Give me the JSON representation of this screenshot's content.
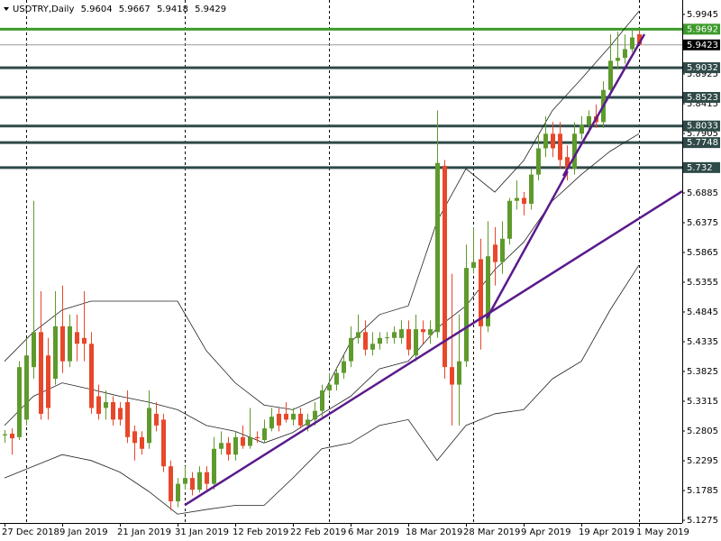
{
  "header": {
    "symbol": "USDTRY,Daily",
    "ohlc": [
      5.9604,
      5.9667,
      5.9418,
      5.9429
    ]
  },
  "chart_data": {
    "type": "candlestick",
    "categories": [
      "27 Dec 2018",
      null,
      null,
      null,
      null,
      null,
      null,
      null,
      "9 Jan 2019",
      null,
      null,
      null,
      null,
      null,
      null,
      null,
      "21 Jan 2019",
      null,
      null,
      null,
      null,
      null,
      null,
      null,
      "31 Jan 2019",
      null,
      null,
      null,
      null,
      null,
      null,
      null,
      "12 Feb 2019",
      null,
      null,
      null,
      null,
      null,
      null,
      null,
      "22 Feb 2019",
      null,
      null,
      null,
      null,
      null,
      null,
      null,
      "6 Mar 2019",
      null,
      null,
      null,
      null,
      null,
      null,
      null,
      "18 Mar 2019",
      null,
      null,
      null,
      null,
      null,
      null,
      null,
      "28 Mar 2019",
      null,
      null,
      null,
      null,
      null,
      null,
      null,
      "9 Apr 2019",
      null,
      null,
      null,
      null,
      null,
      null,
      null,
      "19 Apr 2019",
      null,
      null,
      null,
      null,
      null,
      null,
      null,
      "1 May 2019"
    ],
    "open": [
      5.273,
      5.276,
      5.27,
      5.3,
      5.39,
      5.45,
      5.41,
      5.37,
      5.46,
      5.4,
      5.45,
      5.44,
      5.43,
      5.34,
      5.32,
      5.33,
      5.32,
      5.33,
      5.28,
      5.27,
      5.26,
      5.31,
      5.3,
      5.22,
      5.16,
      5.19,
      5.2,
      5.18,
      5.21,
      5.19,
      5.25,
      5.26,
      5.24,
      5.27,
      5.255,
      5.27,
      5.265,
      5.285,
      5.31,
      5.31,
      5.3,
      5.31,
      5.29,
      5.3,
      5.315,
      5.35,
      5.36,
      5.38,
      5.4,
      5.44,
      5.45,
      5.42,
      5.43,
      5.44,
      5.44,
      5.44,
      5.455,
      5.41,
      5.455,
      5.445,
      5.45,
      5.735,
      5.39,
      5.36,
      5.4,
      5.56,
      5.575,
      5.46,
      5.6,
      5.57,
      5.61,
      5.675,
      5.68,
      5.67,
      5.72,
      5.765,
      5.79,
      5.79,
      5.75,
      5.73,
      5.79,
      5.805,
      5.82,
      5.81,
      5.865,
      5.915,
      5.92,
      5.935,
      5.9604
    ],
    "high": [
      5.282,
      5.285,
      5.4,
      5.44,
      5.675,
      5.52,
      5.44,
      5.52,
      5.53,
      5.48,
      5.48,
      5.52,
      5.45,
      5.36,
      5.35,
      5.34,
      5.33,
      5.35,
      5.29,
      5.28,
      5.35,
      5.33,
      5.31,
      5.23,
      5.2,
      5.22,
      5.21,
      5.22,
      5.22,
      5.27,
      5.28,
      5.27,
      5.28,
      5.29,
      5.32,
      5.28,
      5.3,
      5.32,
      5.32,
      5.33,
      5.32,
      5.32,
      5.31,
      5.33,
      5.36,
      5.38,
      5.39,
      5.41,
      5.46,
      5.48,
      5.47,
      5.45,
      5.45,
      5.45,
      5.46,
      5.47,
      5.47,
      5.48,
      5.47,
      5.47,
      5.83,
      5.745,
      5.55,
      5.48,
      5.6,
      5.63,
      5.61,
      5.64,
      5.63,
      5.64,
      5.68,
      5.71,
      5.69,
      5.73,
      5.79,
      5.82,
      5.81,
      5.81,
      5.77,
      5.81,
      5.82,
      5.83,
      5.84,
      5.88,
      5.96,
      5.965,
      5.96,
      5.97,
      5.9667
    ],
    "low": [
      5.26,
      5.24,
      5.265,
      5.29,
      5.37,
      5.3,
      5.3,
      5.36,
      5.38,
      5.39,
      5.4,
      5.4,
      5.31,
      5.3,
      5.3,
      5.29,
      5.29,
      5.26,
      5.23,
      5.24,
      5.25,
      5.28,
      5.21,
      5.145,
      5.15,
      5.18,
      5.17,
      5.175,
      5.18,
      5.18,
      5.24,
      5.23,
      5.23,
      5.25,
      5.25,
      5.26,
      5.26,
      5.28,
      5.28,
      5.295,
      5.29,
      5.285,
      5.28,
      5.29,
      5.305,
      5.34,
      5.35,
      5.37,
      5.39,
      5.43,
      5.41,
      5.41,
      5.42,
      5.43,
      5.43,
      5.43,
      5.41,
      5.4,
      5.43,
      5.43,
      5.44,
      5.37,
      5.29,
      5.29,
      5.39,
      5.55,
      5.42,
      5.45,
      5.53,
      5.55,
      5.6,
      5.66,
      5.65,
      5.66,
      5.71,
      5.75,
      5.75,
      5.73,
      5.71,
      5.72,
      5.78,
      5.79,
      5.8,
      5.8,
      5.86,
      5.9,
      5.91,
      5.93,
      5.9418
    ],
    "close": [
      5.275,
      5.268,
      5.39,
      5.41,
      5.45,
      5.31,
      5.32,
      5.46,
      5.4,
      5.46,
      5.43,
      5.43,
      5.32,
      5.31,
      5.33,
      5.3,
      5.3,
      5.27,
      5.26,
      5.25,
      5.32,
      5.29,
      5.22,
      5.16,
      5.19,
      5.2,
      5.18,
      5.21,
      5.19,
      5.25,
      5.26,
      5.24,
      5.27,
      5.255,
      5.27,
      5.268,
      5.285,
      5.305,
      5.29,
      5.3,
      5.31,
      5.29,
      5.3,
      5.315,
      5.35,
      5.36,
      5.38,
      5.4,
      5.44,
      5.45,
      5.42,
      5.43,
      5.44,
      5.441,
      5.45,
      5.455,
      5.42,
      5.455,
      5.45,
      5.455,
      5.74,
      5.39,
      5.36,
      5.4,
      5.56,
      5.57,
      5.46,
      5.58,
      5.57,
      5.61,
      5.675,
      5.68,
      5.67,
      5.72,
      5.765,
      5.79,
      5.765,
      5.745,
      5.73,
      5.79,
      5.805,
      5.82,
      5.81,
      5.865,
      5.915,
      5.92,
      5.935,
      5.955,
      5.9429
    ],
    "up_color": "#5e9a2c",
    "down_color": "#e8472a",
    "bollinger": {
      "color": "#222222",
      "x": [
        0,
        4,
        8,
        12,
        16,
        20,
        24,
        28,
        32,
        36,
        40,
        44,
        48,
        52,
        56,
        60,
        64,
        68,
        72,
        76,
        80,
        84,
        88
      ],
      "upper": [
        5.4,
        5.45,
        5.488,
        5.503,
        5.503,
        5.503,
        5.503,
        5.418,
        5.363,
        5.325,
        5.317,
        5.34,
        5.433,
        5.48,
        5.495,
        5.64,
        5.73,
        5.69,
        5.744,
        5.83,
        5.884,
        5.94,
        6.0
      ],
      "middle": [
        5.29,
        5.34,
        5.363,
        5.352,
        5.34,
        5.33,
        5.317,
        5.29,
        5.28,
        5.26,
        5.278,
        5.31,
        5.34,
        5.387,
        5.4,
        5.457,
        5.495,
        5.557,
        5.604,
        5.675,
        5.72,
        5.76,
        5.79
      ],
      "lower": [
        5.2,
        5.22,
        5.24,
        5.23,
        5.21,
        5.177,
        5.138,
        5.146,
        5.153,
        5.153,
        5.2,
        5.25,
        5.26,
        5.29,
        5.3,
        5.23,
        5.29,
        5.31,
        5.317,
        5.37,
        5.4,
        5.488,
        5.565
      ]
    },
    "trendlines": [
      {
        "color": "#5a1a8c",
        "x": [
          25,
          94
        ],
        "y": [
          5.1535,
          5.6915
        ]
      },
      {
        "color": "#5a1a8c",
        "x": [
          66.9,
          78.1
        ],
        "y": [
          5.4735,
          5.7255
        ]
      },
      {
        "color": "#5a1a8c",
        "x": [
          77.5,
          88.75
        ],
        "y": [
          5.7178,
          5.9605
        ]
      }
    ],
    "levels": [
      {
        "value": 5.9692,
        "color": "#3c9a2a"
      },
      {
        "value": 5.9032,
        "color": "#2f4a48"
      },
      {
        "value": 5.8523,
        "color": "#2f4a48"
      },
      {
        "value": 5.8033,
        "color": "#2f4a48"
      },
      {
        "value": 5.7748,
        "color": "#2f4a48"
      },
      {
        "value": 5.732,
        "color": "#2f4a48"
      }
    ],
    "bid": 5.9423,
    "period_separators": [
      3,
      25,
      45,
      65,
      88
    ],
    "ylim": [
      5.1229,
      6.0192
    ],
    "yticks": [
      5.9945,
      5.8925,
      5.8415,
      5.7905,
      5.6885,
      5.6375,
      5.5865,
      5.5355,
      5.4845,
      5.4335,
      5.3825,
      5.3315,
      5.2805,
      5.2295,
      5.1785,
      5.1275
    ]
  }
}
